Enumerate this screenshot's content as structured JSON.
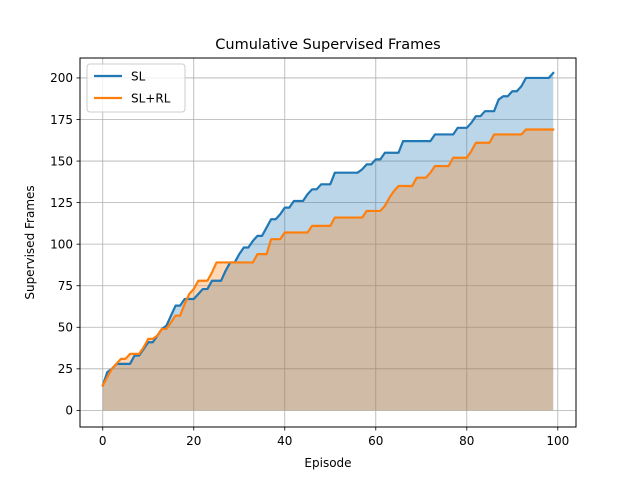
{
  "chart_data": {
    "type": "area",
    "title": "Cumulative Supervised Frames",
    "xlabel": "Episode",
    "ylabel": "Supervised Frames",
    "xlim": [
      -5,
      104
    ],
    "ylim": [
      -10,
      212
    ],
    "xticks": [
      0,
      20,
      40,
      60,
      80,
      100
    ],
    "yticks": [
      0,
      25,
      50,
      75,
      100,
      125,
      150,
      175,
      200
    ],
    "grid": true,
    "legend": "top-left",
    "series": [
      {
        "name": "SL",
        "color": "#1f77b4",
        "fill_color": "#1f77b4",
        "fill_alpha": 0.3,
        "x": [
          0,
          1,
          2,
          3,
          4,
          5,
          6,
          7,
          8,
          9,
          10,
          11,
          12,
          13,
          14,
          15,
          16,
          17,
          18,
          19,
          20,
          21,
          22,
          23,
          24,
          25,
          26,
          27,
          28,
          29,
          30,
          31,
          32,
          33,
          34,
          35,
          36,
          37,
          38,
          39,
          40,
          41,
          42,
          43,
          44,
          45,
          46,
          47,
          48,
          49,
          50,
          51,
          52,
          53,
          54,
          55,
          56,
          57,
          58,
          59,
          60,
          61,
          62,
          63,
          64,
          65,
          66,
          67,
          68,
          69,
          70,
          71,
          72,
          73,
          74,
          75,
          76,
          77,
          78,
          79,
          80,
          81,
          82,
          83,
          84,
          85,
          86,
          87,
          88,
          89,
          90,
          91,
          92,
          93,
          94,
          95,
          96,
          97,
          98,
          99
        ],
        "y": [
          15,
          23,
          25,
          28,
          28,
          28,
          28,
          33,
          33,
          37,
          41,
          41,
          45,
          49,
          51,
          57,
          63,
          63,
          67,
          67,
          67,
          70,
          73,
          73,
          78,
          78,
          78,
          84,
          89,
          89,
          94,
          98,
          98,
          102,
          105,
          105,
          110,
          115,
          115,
          118,
          122,
          122,
          126,
          126,
          126,
          130,
          133,
          133,
          136,
          136,
          136,
          143,
          143,
          143,
          143,
          143,
          143,
          145,
          148,
          148,
          151,
          151,
          155,
          155,
          155,
          155,
          162,
          162,
          162,
          162,
          162,
          162,
          162,
          166,
          166,
          166,
          166,
          166,
          170,
          170,
          170,
          173,
          177,
          177,
          180,
          180,
          180,
          187,
          189,
          189,
          192,
          192,
          195,
          200,
          200,
          200,
          200,
          200,
          200,
          203
        ]
      },
      {
        "name": "SL+RL",
        "color": "#ff7f0e",
        "fill_color": "#ff7f0e",
        "fill_alpha": 0.3,
        "x": [
          0,
          1,
          2,
          3,
          4,
          5,
          6,
          7,
          8,
          9,
          10,
          11,
          12,
          13,
          14,
          15,
          16,
          17,
          18,
          19,
          20,
          21,
          22,
          23,
          24,
          25,
          26,
          27,
          28,
          29,
          30,
          31,
          32,
          33,
          34,
          35,
          36,
          37,
          38,
          39,
          40,
          41,
          42,
          43,
          44,
          45,
          46,
          47,
          48,
          49,
          50,
          51,
          52,
          53,
          54,
          55,
          56,
          57,
          58,
          59,
          60,
          61,
          62,
          63,
          64,
          65,
          66,
          67,
          68,
          69,
          70,
          71,
          72,
          73,
          74,
          75,
          76,
          77,
          78,
          79,
          80,
          81,
          82,
          83,
          84,
          85,
          86,
          87,
          88,
          89,
          90,
          91,
          92,
          93,
          94,
          95,
          96,
          97,
          98,
          99
        ],
        "y": [
          15,
          20,
          25,
          28,
          31,
          31,
          34,
          34,
          34,
          38,
          43,
          43,
          45,
          49,
          49,
          53,
          57,
          57,
          64,
          70,
          73,
          78,
          78,
          78,
          83,
          89,
          89,
          89,
          89,
          89,
          89,
          89,
          89,
          89,
          94,
          94,
          94,
          103,
          103,
          103,
          107,
          107,
          107,
          107,
          107,
          107,
          111,
          111,
          111,
          111,
          111,
          116,
          116,
          116,
          116,
          116,
          116,
          116,
          120,
          120,
          120,
          120,
          123,
          128,
          132,
          135,
          135,
          135,
          135,
          140,
          140,
          140,
          143,
          147,
          147,
          147,
          147,
          152,
          152,
          152,
          152,
          156,
          161,
          161,
          161,
          161,
          166,
          166,
          166,
          166,
          166,
          166,
          166,
          169,
          169,
          169,
          169,
          169,
          169,
          169
        ]
      }
    ]
  }
}
